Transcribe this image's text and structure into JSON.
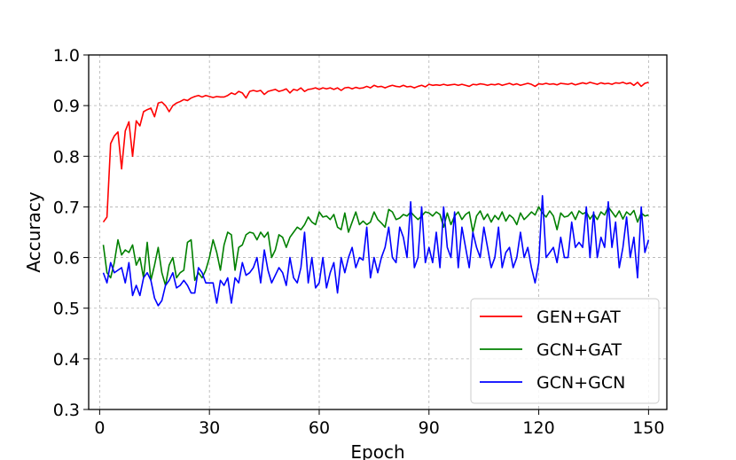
{
  "chart_data": {
    "type": "line",
    "title": "",
    "xlabel": "Epoch",
    "ylabel": "Accuracy",
    "xlim": [
      -3,
      155
    ],
    "ylim": [
      0.3,
      1.0
    ],
    "xticks": [
      0,
      30,
      60,
      90,
      120,
      150
    ],
    "xtick_labels": [
      "0",
      "30",
      "60",
      "90",
      "120",
      "150"
    ],
    "yticks": [
      0.3,
      0.4,
      0.5,
      0.6,
      0.7,
      0.8,
      0.9,
      1.0
    ],
    "ytick_labels": [
      "0.3",
      "0.4",
      "0.5",
      "0.6",
      "0.7",
      "0.8",
      "0.9",
      "1.0"
    ],
    "grid": true,
    "legend_position": "lower-right",
    "x": [
      1,
      2,
      3,
      4,
      5,
      6,
      7,
      8,
      9,
      10,
      11,
      12,
      13,
      14,
      15,
      16,
      17,
      18,
      19,
      20,
      21,
      22,
      23,
      24,
      25,
      26,
      27,
      28,
      29,
      30,
      31,
      32,
      33,
      34,
      35,
      36,
      37,
      38,
      39,
      40,
      41,
      42,
      43,
      44,
      45,
      46,
      47,
      48,
      49,
      50,
      51,
      52,
      53,
      54,
      55,
      56,
      57,
      58,
      59,
      60,
      61,
      62,
      63,
      64,
      65,
      66,
      67,
      68,
      69,
      70,
      71,
      72,
      73,
      74,
      75,
      76,
      77,
      78,
      79,
      80,
      81,
      82,
      83,
      84,
      85,
      86,
      87,
      88,
      89,
      90,
      91,
      92,
      93,
      94,
      95,
      96,
      97,
      98,
      99,
      100,
      101,
      102,
      103,
      104,
      105,
      106,
      107,
      108,
      109,
      110,
      111,
      112,
      113,
      114,
      115,
      116,
      117,
      118,
      119,
      120,
      121,
      122,
      123,
      124,
      125,
      126,
      127,
      128,
      129,
      130,
      131,
      132,
      133,
      134,
      135,
      136,
      137,
      138,
      139,
      140,
      141,
      142,
      143,
      144,
      145,
      146,
      147,
      148,
      149,
      150
    ],
    "series": [
      {
        "name": "GEN+GAT",
        "color": "#ff0000",
        "values": [
          0.67,
          0.68,
          0.825,
          0.84,
          0.848,
          0.775,
          0.85,
          0.868,
          0.8,
          0.87,
          0.86,
          0.888,
          0.892,
          0.895,
          0.878,
          0.905,
          0.907,
          0.9,
          0.888,
          0.9,
          0.905,
          0.908,
          0.912,
          0.91,
          0.915,
          0.918,
          0.92,
          0.917,
          0.92,
          0.918,
          0.916,
          0.918,
          0.917,
          0.917,
          0.92,
          0.925,
          0.922,
          0.928,
          0.925,
          0.915,
          0.928,
          0.93,
          0.928,
          0.93,
          0.922,
          0.928,
          0.93,
          0.932,
          0.928,
          0.93,
          0.933,
          0.925,
          0.932,
          0.93,
          0.935,
          0.928,
          0.932,
          0.933,
          0.935,
          0.932,
          0.935,
          0.933,
          0.935,
          0.932,
          0.935,
          0.93,
          0.935,
          0.936,
          0.933,
          0.936,
          0.934,
          0.935,
          0.938,
          0.935,
          0.94,
          0.937,
          0.938,
          0.935,
          0.938,
          0.94,
          0.938,
          0.937,
          0.94,
          0.937,
          0.938,
          0.935,
          0.938,
          0.94,
          0.937,
          0.942,
          0.94,
          0.941,
          0.94,
          0.942,
          0.94,
          0.941,
          0.942,
          0.94,
          0.942,
          0.94,
          0.938,
          0.942,
          0.941,
          0.943,
          0.942,
          0.94,
          0.942,
          0.941,
          0.943,
          0.94,
          0.942,
          0.944,
          0.941,
          0.943,
          0.94,
          0.942,
          0.944,
          0.942,
          0.938,
          0.943,
          0.942,
          0.944,
          0.942,
          0.943,
          0.941,
          0.944,
          0.943,
          0.942,
          0.944,
          0.941,
          0.943,
          0.945,
          0.943,
          0.946,
          0.944,
          0.942,
          0.945,
          0.943,
          0.944,
          0.942,
          0.945,
          0.944,
          0.946,
          0.943,
          0.945,
          0.94,
          0.946,
          0.938,
          0.944,
          0.946
        ]
      },
      {
        "name": "GCN+GAT",
        "color": "#008000",
        "values": [
          0.625,
          0.57,
          0.56,
          0.59,
          0.635,
          0.605,
          0.615,
          0.61,
          0.625,
          0.585,
          0.6,
          0.56,
          0.63,
          0.555,
          0.585,
          0.62,
          0.57,
          0.545,
          0.585,
          0.6,
          0.56,
          0.57,
          0.575,
          0.63,
          0.635,
          0.555,
          0.57,
          0.56,
          0.575,
          0.6,
          0.635,
          0.61,
          0.575,
          0.625,
          0.65,
          0.645,
          0.575,
          0.62,
          0.625,
          0.645,
          0.65,
          0.648,
          0.635,
          0.65,
          0.64,
          0.65,
          0.6,
          0.615,
          0.645,
          0.64,
          0.62,
          0.64,
          0.65,
          0.66,
          0.655,
          0.665,
          0.68,
          0.67,
          0.665,
          0.69,
          0.68,
          0.682,
          0.675,
          0.685,
          0.66,
          0.655,
          0.688,
          0.65,
          0.67,
          0.69,
          0.665,
          0.672,
          0.665,
          0.67,
          0.69,
          0.675,
          0.668,
          0.66,
          0.695,
          0.69,
          0.675,
          0.678,
          0.685,
          0.682,
          0.69,
          0.682,
          0.675,
          0.682,
          0.69,
          0.688,
          0.682,
          0.69,
          0.685,
          0.66,
          0.688,
          0.665,
          0.682,
          0.69,
          0.675,
          0.685,
          0.69,
          0.65,
          0.682,
          0.692,
          0.675,
          0.686,
          0.67,
          0.683,
          0.675,
          0.69,
          0.672,
          0.684,
          0.678,
          0.665,
          0.688,
          0.675,
          0.682,
          0.69,
          0.684,
          0.7,
          0.688,
          0.68,
          0.692,
          0.682,
          0.655,
          0.688,
          0.68,
          0.682,
          0.69,
          0.675,
          0.692,
          0.686,
          0.69,
          0.676,
          0.686,
          0.675,
          0.69,
          0.684,
          0.7,
          0.69,
          0.68,
          0.692,
          0.676,
          0.69,
          0.684,
          0.693,
          0.67,
          0.688,
          0.682,
          0.684
        ]
      },
      {
        "name": "GCN+GCN",
        "color": "#0000ff",
        "values": [
          0.57,
          0.55,
          0.59,
          0.57,
          0.575,
          0.58,
          0.55,
          0.59,
          0.525,
          0.545,
          0.525,
          0.56,
          0.57,
          0.555,
          0.52,
          0.505,
          0.515,
          0.545,
          0.555,
          0.57,
          0.54,
          0.545,
          0.555,
          0.545,
          0.53,
          0.53,
          0.58,
          0.57,
          0.55,
          0.55,
          0.55,
          0.51,
          0.555,
          0.545,
          0.56,
          0.51,
          0.56,
          0.55,
          0.59,
          0.565,
          0.57,
          0.58,
          0.6,
          0.55,
          0.615,
          0.575,
          0.55,
          0.565,
          0.58,
          0.57,
          0.545,
          0.6,
          0.56,
          0.55,
          0.58,
          0.65,
          0.55,
          0.6,
          0.54,
          0.55,
          0.6,
          0.54,
          0.57,
          0.59,
          0.53,
          0.6,
          0.57,
          0.6,
          0.62,
          0.58,
          0.6,
          0.595,
          0.66,
          0.56,
          0.6,
          0.57,
          0.6,
          0.62,
          0.66,
          0.6,
          0.59,
          0.66,
          0.64,
          0.6,
          0.71,
          0.58,
          0.6,
          0.7,
          0.59,
          0.62,
          0.59,
          0.65,
          0.58,
          0.7,
          0.62,
          0.6,
          0.69,
          0.58,
          0.66,
          0.62,
          0.58,
          0.65,
          0.62,
          0.6,
          0.66,
          0.62,
          0.58,
          0.6,
          0.66,
          0.58,
          0.61,
          0.62,
          0.58,
          0.6,
          0.65,
          0.6,
          0.62,
          0.58,
          0.55,
          0.59,
          0.722,
          0.6,
          0.61,
          0.62,
          0.59,
          0.64,
          0.6,
          0.6,
          0.67,
          0.62,
          0.63,
          0.62,
          0.7,
          0.6,
          0.69,
          0.6,
          0.64,
          0.62,
          0.71,
          0.62,
          0.67,
          0.58,
          0.62,
          0.68,
          0.6,
          0.64,
          0.56,
          0.7,
          0.61,
          0.635
        ]
      }
    ]
  }
}
